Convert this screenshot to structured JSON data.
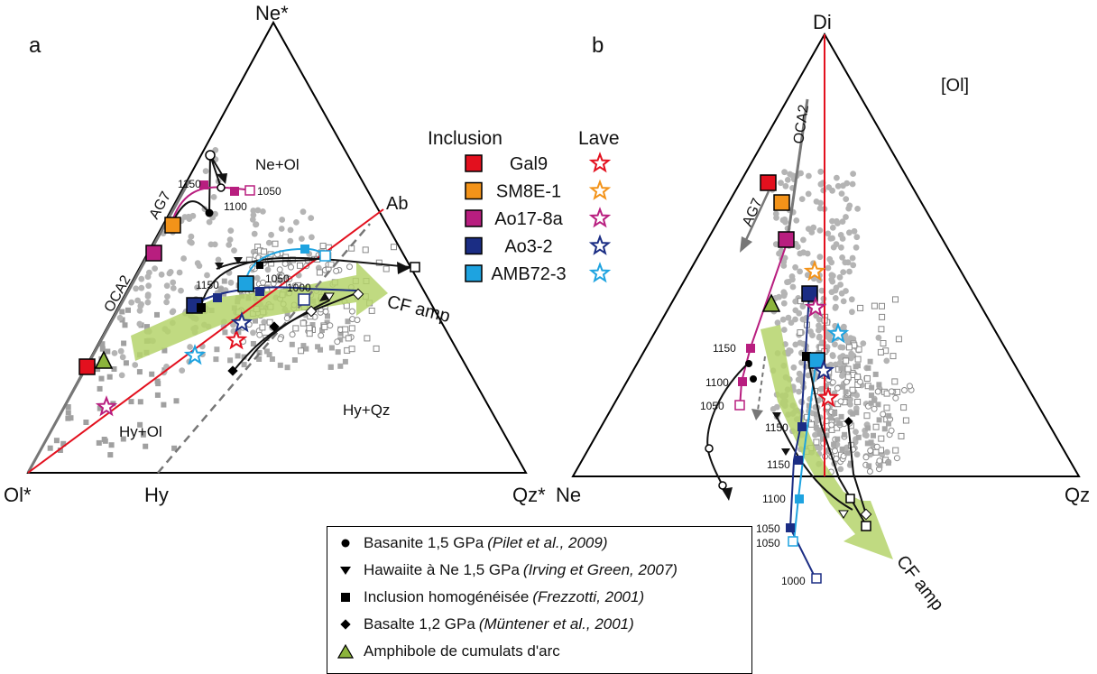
{
  "panel_a": {
    "letter": "a",
    "vertex_top": "Ne*",
    "vertex_left": "Ol*",
    "vertex_right": "Qz*",
    "label_ab": "Ab",
    "label_hy": "Hy",
    "field_ne_ol": "Ne+Ol",
    "field_hy_ol": "Hy+Ol",
    "field_hy_qz": "Hy+Qz",
    "trend_oca2": "OCA2",
    "trend_ag7": "AG7",
    "arrow_label": "CF amp",
    "temps": [
      "1150",
      "1100",
      "1050",
      "1150",
      "1050",
      "1000"
    ]
  },
  "panel_b": {
    "letter": "b",
    "vertex_top": "Di",
    "vertex_left": "Ne",
    "vertex_right": "Qz",
    "projection": "[Ol]",
    "trend_oca2": "OCA2",
    "trend_ag7": "AG7",
    "arrow_label": "CF amp",
    "temps": [
      "1150",
      "1100",
      "1050",
      "1150",
      "1150",
      "1100",
      "1050",
      "1050",
      "1000"
    ]
  },
  "sample_legend": {
    "header_inclusion": "Inclusion",
    "header_lave": "Lave",
    "samples": [
      {
        "name": "Gal9",
        "color": "#e3101e"
      },
      {
        "name": "SM8E-1",
        "color": "#f39319"
      },
      {
        "name": "Ao17-8a",
        "color": "#b81e7f"
      },
      {
        "name": "Ao3-2",
        "color": "#1b2d84"
      },
      {
        "name": "AMB72-3",
        "color": "#1ea3e0"
      }
    ]
  },
  "experiment_legend": [
    {
      "symbol": "circle",
      "text": "Basanite 1,5 GPa",
      "ref": "(Pilet et al., 2009)"
    },
    {
      "symbol": "triangle-down",
      "text": "Hawaiite à Ne 1,5 GPa",
      "ref": "(Irving et Green, 2007)"
    },
    {
      "symbol": "square",
      "text": "Inclusion homogénéisée",
      "ref": "(Frezzotti, 2001)"
    },
    {
      "symbol": "diamond",
      "text": "Basalte 1,2 GPa",
      "ref": "(Müntener et al., 2001)"
    },
    {
      "symbol": "triangle-green",
      "text": "Amphibole de cumulats d'arc",
      "ref": ""
    }
  ],
  "colors": {
    "red_line": "#e3101e",
    "gray_line": "#777777",
    "green_arrow": "#b5d36b",
    "green_text": "#1a7a3a",
    "scatter_gray": "#b4b4b4",
    "magenta": "#b81e7f",
    "navy": "#1b2d84",
    "cyan": "#1ea3e0"
  }
}
